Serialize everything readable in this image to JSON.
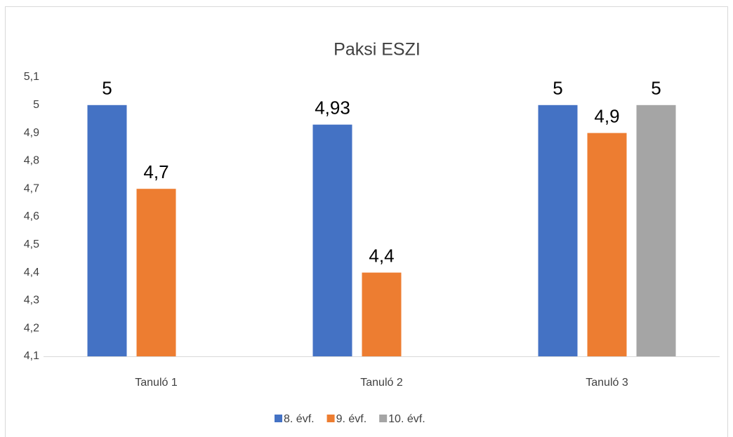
{
  "chart_data": {
    "type": "bar",
    "title": "Paksi ESZI",
    "categories": [
      "Tanuló 1",
      "Tanuló 2",
      "Tanuló 3"
    ],
    "series": [
      {
        "name": "8. évf.",
        "color": "#4472c4",
        "values": [
          5,
          4.93,
          5
        ],
        "value_labels": [
          "5",
          "4,93",
          "5"
        ]
      },
      {
        "name": "9. évf.",
        "color": "#ed7d31",
        "values": [
          4.7,
          4.4,
          4.9
        ],
        "value_labels": [
          "4,7",
          "4,4",
          "4,9"
        ]
      },
      {
        "name": "10. évf.",
        "color": "#a5a5a5",
        "values": [
          null,
          null,
          5
        ],
        "value_labels": [
          null,
          null,
          "5"
        ]
      }
    ],
    "ylim": [
      4.1,
      5.1
    ],
    "yticks": [
      {
        "value": 4.1,
        "label": "4,1"
      },
      {
        "value": 4.2,
        "label": "4,2"
      },
      {
        "value": 4.3,
        "label": "4,3"
      },
      {
        "value": 4.4,
        "label": "4,4"
      },
      {
        "value": 4.5,
        "label": "4,5"
      },
      {
        "value": 4.6,
        "label": "4,6"
      },
      {
        "value": 4.7,
        "label": "4,7"
      },
      {
        "value": 4.8,
        "label": "4,8"
      },
      {
        "value": 4.9,
        "label": "4,9"
      },
      5,
      {
        "value": 5.1,
        "label": "5,1"
      }
    ],
    "grid": false,
    "legend": "bottom"
  }
}
